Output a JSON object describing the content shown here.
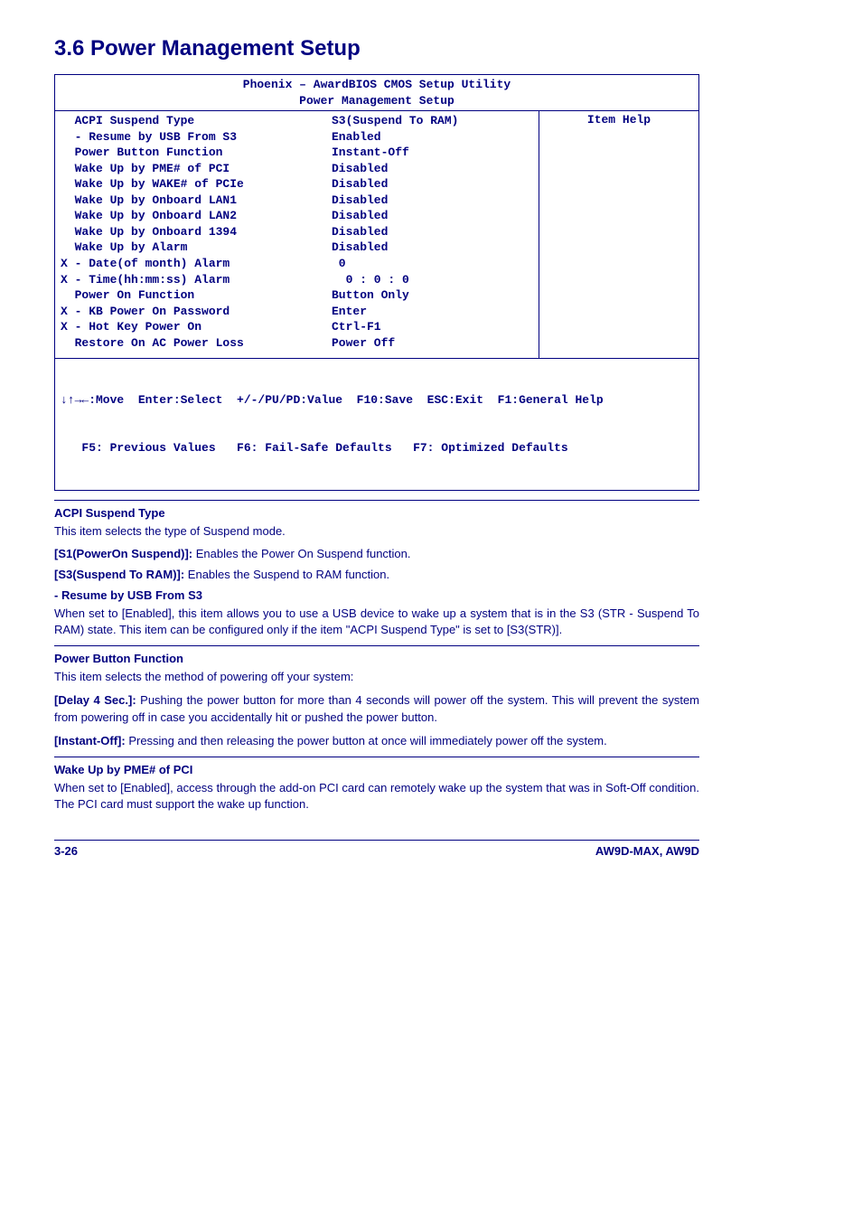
{
  "title": "3.6 Power Management Setup",
  "bios": {
    "header1": "Phoenix – AwardBIOS CMOS Setup Utility",
    "header2": "Power Management Setup",
    "help": "Item Help",
    "rows": [
      {
        "label": "  ACPI Suspend Type",
        "value": "S3(Suspend To RAM)"
      },
      {
        "label": "  - Resume by USB From S3",
        "value": "Enabled"
      },
      {
        "label": "  Power Button Function",
        "value": "Instant-Off"
      },
      {
        "label": "  Wake Up by PME# of PCI",
        "value": "Disabled"
      },
      {
        "label": "  Wake Up by WAKE# of PCIe",
        "value": "Disabled"
      },
      {
        "label": "  Wake Up by Onboard LAN1",
        "value": "Disabled"
      },
      {
        "label": "  Wake Up by Onboard LAN2",
        "value": "Disabled"
      },
      {
        "label": "  Wake Up by Onboard 1394",
        "value": "Disabled"
      },
      {
        "label": "  Wake Up by Alarm",
        "value": "Disabled"
      },
      {
        "label": "X - Date(of month) Alarm",
        "value": " 0"
      },
      {
        "label": "X - Time(hh:mm:ss) Alarm",
        "value": "  0 : 0 : 0"
      },
      {
        "label": "  Power On Function",
        "value": "Button Only"
      },
      {
        "label": "X - KB Power On Password",
        "value": "Enter"
      },
      {
        "label": "X - Hot Key Power On",
        "value": "Ctrl-F1"
      },
      {
        "label": "  Restore On AC Power Loss",
        "value": "Power Off"
      }
    ],
    "footer1": "↓↑→←:Move  Enter:Select  +/-/PU/PD:Value  F10:Save  ESC:Exit  F1:General Help",
    "footer2": "   F5: Previous Values   F6: Fail-Safe Defaults   F7: Optimized Defaults"
  },
  "sections": {
    "acpi_head": "ACPI Suspend Type",
    "acpi_body": "This item selects the type of Suspend mode.",
    "s1_label": "[S1(PowerOn Suspend)]:",
    "s1_text": " Enables the Power On Suspend function.",
    "s3_label": "[S3(Suspend To RAM)]:",
    "s3_text": " Enables the Suspend to RAM function.",
    "resume_head": "-   Resume by USB From S3",
    "resume_body": "When set to [Enabled], this item allows you to use a USB device to wake up a system that is in the S3 (STR - Suspend To RAM) state. This item can be configured only if the item \"ACPI Suspend Type\" is set to [S3(STR)].",
    "pbf_head": "Power Button Function",
    "pbf_body": "This item selects the method of powering off your system:",
    "delay_label": "[Delay 4 Sec.]:",
    "delay_text": " Pushing the power button for more than 4 seconds will power off the system. This will prevent the system from powering off in case you accidentally hit or pushed the power button.",
    "instant_label": "[Instant-Off]:",
    "instant_text": " Pressing and then releasing the power button at once will immediately power off the system.",
    "pme_head": "Wake Up by PME# of PCI",
    "pme_body": "When set to [Enabled], access through the add-on PCI card can remotely wake up the system that was in Soft-Off condition. The PCI card must support the wake up function."
  },
  "footer": {
    "left": "3-26",
    "right": "AW9D-MAX, AW9D"
  }
}
